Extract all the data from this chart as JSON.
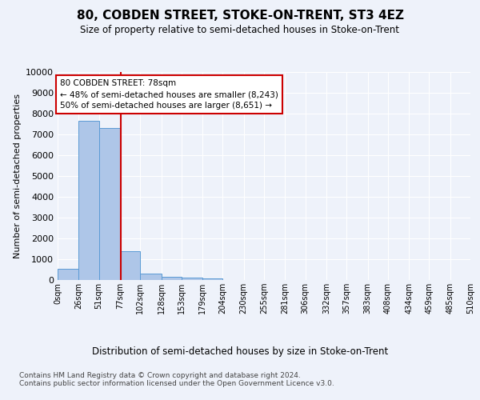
{
  "title": "80, COBDEN STREET, STOKE-ON-TRENT, ST3 4EZ",
  "subtitle": "Size of property relative to semi-detached houses in Stoke-on-Trent",
  "xlabel": "Distribution of semi-detached houses by size in Stoke-on-Trent",
  "ylabel": "Number of semi-detached properties",
  "bar_values": [
    550,
    7650,
    7300,
    1380,
    310,
    155,
    110,
    80,
    0,
    0,
    0,
    0,
    0,
    0,
    0,
    0,
    0,
    0,
    0,
    0
  ],
  "bin_edges": [
    0,
    26,
    51,
    77,
    102,
    128,
    153,
    179,
    204,
    230,
    255,
    281,
    306,
    332,
    357,
    383,
    408,
    434,
    459,
    485,
    510
  ],
  "bar_color": "#aec6e8",
  "bar_edgecolor": "#5b9bd5",
  "red_line_x": 78,
  "vline_color": "#cc0000",
  "annotation_text": "80 COBDEN STREET: 78sqm\n← 48% of semi-detached houses are smaller (8,243)\n50% of semi-detached houses are larger (8,651) →",
  "annotation_box_color": "#ffffff",
  "annotation_box_edgecolor": "#cc0000",
  "ylim": [
    0,
    10000
  ],
  "yticks": [
    0,
    1000,
    2000,
    3000,
    4000,
    5000,
    6000,
    7000,
    8000,
    9000,
    10000
  ],
  "xtick_labels": [
    "0sqm",
    "26sqm",
    "51sqm",
    "77sqm",
    "102sqm",
    "128sqm",
    "153sqm",
    "179sqm",
    "204sqm",
    "230sqm",
    "255sqm",
    "281sqm",
    "306sqm",
    "332sqm",
    "357sqm",
    "383sqm",
    "408sqm",
    "434sqm",
    "459sqm",
    "485sqm",
    "510sqm"
  ],
  "footer_text": "Contains HM Land Registry data © Crown copyright and database right 2024.\nContains public sector information licensed under the Open Government Licence v3.0.",
  "bg_color": "#eef2fa",
  "grid_color": "#ffffff"
}
